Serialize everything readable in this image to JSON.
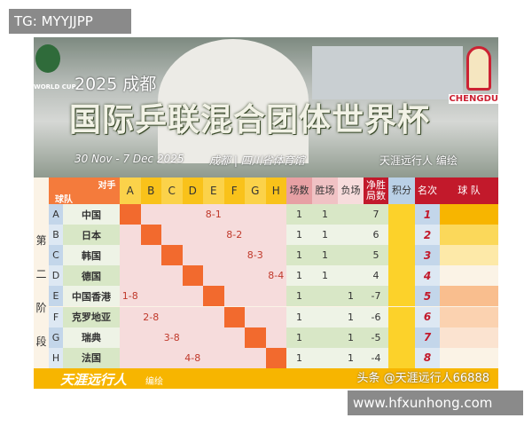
{
  "watermarks": {
    "top": "TG: MYYJJPP",
    "bottom": "www.hfxunhong.com"
  },
  "banner": {
    "logo_left": "WORLD CUP",
    "logo_right": "CHENGDU",
    "year_city": "2025 成都",
    "title": "国际乒联混合团体世界杯",
    "dates": "30 Nov - 7 Dec  2025",
    "venue": "成都 | 四川省体育馆",
    "author": "天涯远行人  编绘"
  },
  "table": {
    "corner_top": "对手",
    "corner_bottom": "球队",
    "stage": [
      "第",
      "二",
      "阶",
      "段"
    ],
    "opponents": [
      "A",
      "B",
      "C",
      "D",
      "E",
      "F",
      "G",
      "H"
    ],
    "stat_headers": [
      "场数",
      "胜场",
      "负场",
      "净胜局数",
      "积分",
      "名次",
      "球 队"
    ],
    "rows": [
      {
        "letter": "A",
        "team": "中国",
        "scores": [
          "",
          "",
          "",
          "",
          "8-1",
          "",
          "",
          ""
        ],
        "played": "1",
        "won": "1",
        "lost": "",
        "net": "7",
        "points": "",
        "rank": "1"
      },
      {
        "letter": "B",
        "team": "日本",
        "scores": [
          "",
          "",
          "",
          "",
          "",
          "8-2",
          "",
          ""
        ],
        "played": "1",
        "won": "1",
        "lost": "",
        "net": "6",
        "points": "",
        "rank": "2"
      },
      {
        "letter": "C",
        "team": "韩国",
        "scores": [
          "",
          "",
          "",
          "",
          "",
          "",
          "8-3",
          ""
        ],
        "played": "1",
        "won": "1",
        "lost": "",
        "net": "5",
        "points": "",
        "rank": "3"
      },
      {
        "letter": "D",
        "team": "德国",
        "scores": [
          "",
          "",
          "",
          "",
          "",
          "",
          "",
          "8-4"
        ],
        "played": "1",
        "won": "1",
        "lost": "",
        "net": "4",
        "points": "",
        "rank": "4"
      },
      {
        "letter": "E",
        "team": "中国香港",
        "scores": [
          "1-8",
          "",
          "",
          "",
          "",
          "",
          "",
          ""
        ],
        "played": "1",
        "won": "",
        "lost": "1",
        "net": "-7",
        "points": "",
        "rank": "5"
      },
      {
        "letter": "F",
        "team": "克罗地亚",
        "scores": [
          "",
          "2-8",
          "",
          "",
          "",
          "",
          "",
          ""
        ],
        "played": "1",
        "won": "",
        "lost": "1",
        "net": "-6",
        "points": "",
        "rank": "6"
      },
      {
        "letter": "G",
        "team": "瑞典",
        "scores": [
          "",
          "",
          "3-8",
          "",
          "",
          "",
          "",
          ""
        ],
        "played": "1",
        "won": "",
        "lost": "1",
        "net": "-5",
        "points": "",
        "rank": "7"
      },
      {
        "letter": "H",
        "team": "法国",
        "scores": [
          "",
          "",
          "",
          "4-8",
          "",
          "",
          "",
          ""
        ],
        "played": "1",
        "won": "",
        "lost": "1",
        "net": "-4",
        "points": "",
        "rank": "8"
      }
    ]
  },
  "footer": {
    "author": "天涯远行人",
    "drawn": "编绘",
    "source": "头条 @天涯远行人66888"
  },
  "colors": {
    "diag": "#f26a2e",
    "header_orange": "#f47b3c",
    "header_yellow": "#f9c21a",
    "rank_red": "#c2192b",
    "score_red": "#c0392b"
  }
}
